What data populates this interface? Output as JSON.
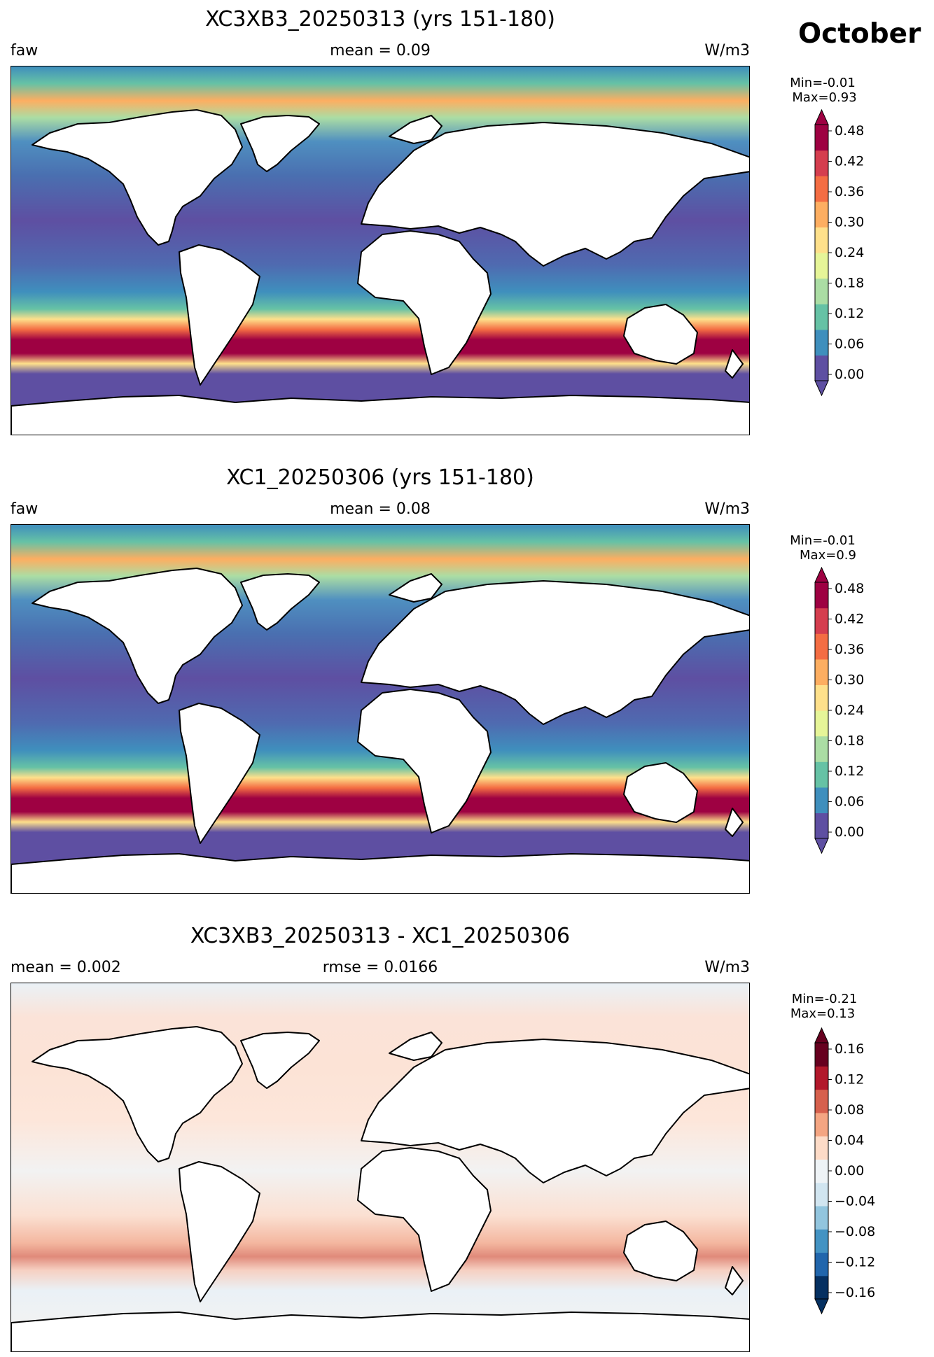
{
  "figure": {
    "month_label": "October"
  },
  "panels": [
    {
      "title": "XC3XB3_20250313 (yrs 151-180)",
      "left_label": "faw",
      "center_label": "mean = 0.09",
      "right_label": "W/m3",
      "stat_min": "Min=-0.01",
      "stat_max": "Max=0.93",
      "colormap": "Spectral_r",
      "colorbar_ticks": [
        "0.48",
        "0.42",
        "0.36",
        "0.30",
        "0.24",
        "0.18",
        "0.12",
        "0.06",
        "0.00"
      ],
      "colorbar_colors": [
        "#5e4fa2",
        "#3f8fbd",
        "#66c2a5",
        "#abdda4",
        "#e6f598",
        "#fee08b",
        "#fdae61",
        "#f46d43",
        "#d53e4f",
        "#9e0142"
      ]
    },
    {
      "title": "XC1_20250306 (yrs 151-180)",
      "left_label": "faw",
      "center_label": "mean = 0.08",
      "right_label": "W/m3",
      "stat_min": "Min=-0.01",
      "stat_max": "Max=0.9",
      "colormap": "Spectral_r",
      "colorbar_ticks": [
        "0.48",
        "0.42",
        "0.36",
        "0.30",
        "0.24",
        "0.18",
        "0.12",
        "0.06",
        "0.00"
      ],
      "colorbar_colors": [
        "#5e4fa2",
        "#3f8fbd",
        "#66c2a5",
        "#abdda4",
        "#e6f598",
        "#fee08b",
        "#fdae61",
        "#f46d43",
        "#d53e4f",
        "#9e0142"
      ]
    },
    {
      "title": "XC3XB3_20250313 - XC1_20250306",
      "left_label": "mean = 0.002",
      "center_label": "rmse = 0.0166",
      "right_label": "W/m3",
      "stat_min": "Min=-0.21",
      "stat_max": "Max=0.13",
      "colormap": "RdBu_r",
      "colorbar_ticks": [
        "0.16",
        "0.12",
        "0.08",
        "0.04",
        "0.00",
        "−0.04",
        "−0.08",
        "−0.12",
        "−0.16"
      ],
      "colorbar_colors": [
        "#053061",
        "#2166ac",
        "#4393c3",
        "#92c5de",
        "#d1e5f0",
        "#eef3f6",
        "#fddbc7",
        "#f4a582",
        "#d6604d",
        "#b2182b",
        "#67001f"
      ]
    }
  ]
}
